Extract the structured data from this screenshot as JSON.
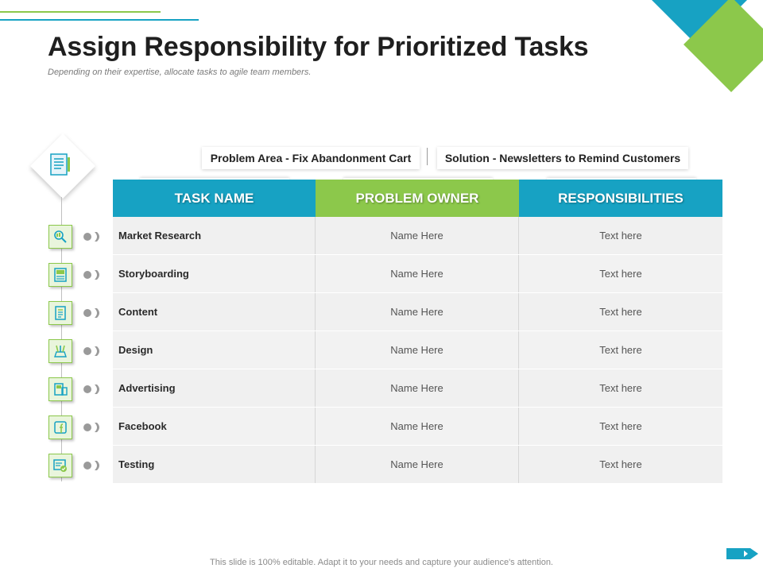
{
  "slide": {
    "title": "Assign Responsibility for Prioritized Tasks",
    "subtitle": "Depending on their expertise, allocate tasks to agile team members.",
    "footer": "This slide is 100% editable. Adapt it to your needs and capture your audience's attention."
  },
  "headers": {
    "problem_area": "Problem Area - Fix Abandonment Cart",
    "solution": "Solution - Newsletters to Remind Customers"
  },
  "table": {
    "columns": [
      "TASK NAME",
      "PROBLEM OWNER",
      "RESPONSIBILITIES"
    ],
    "rows": [
      {
        "task": "Market Research",
        "owner": "Name Here",
        "responsibility": "Text here",
        "icon": "magnifier-icon"
      },
      {
        "task": "Storyboarding",
        "owner": "Name Here",
        "responsibility": "Text here",
        "icon": "storyboard-icon"
      },
      {
        "task": "Content",
        "owner": "Name Here",
        "responsibility": "Text here",
        "icon": "document-icon"
      },
      {
        "task": "Design",
        "owner": "Name Here",
        "responsibility": "Text here",
        "icon": "design-tools-icon"
      },
      {
        "task": "Advertising",
        "owner": "Name Here",
        "responsibility": "Text here",
        "icon": "advertising-icon"
      },
      {
        "task": "Facebook",
        "owner": "Name Here",
        "responsibility": "Text here",
        "icon": "facebook-icon"
      },
      {
        "task": "Testing",
        "owner": "Name Here",
        "responsibility": "Text here",
        "icon": "testing-icon"
      }
    ]
  },
  "colors": {
    "blue": "#17a2c3",
    "green": "#8cc84b",
    "row_bg": "#f2f2f2"
  }
}
